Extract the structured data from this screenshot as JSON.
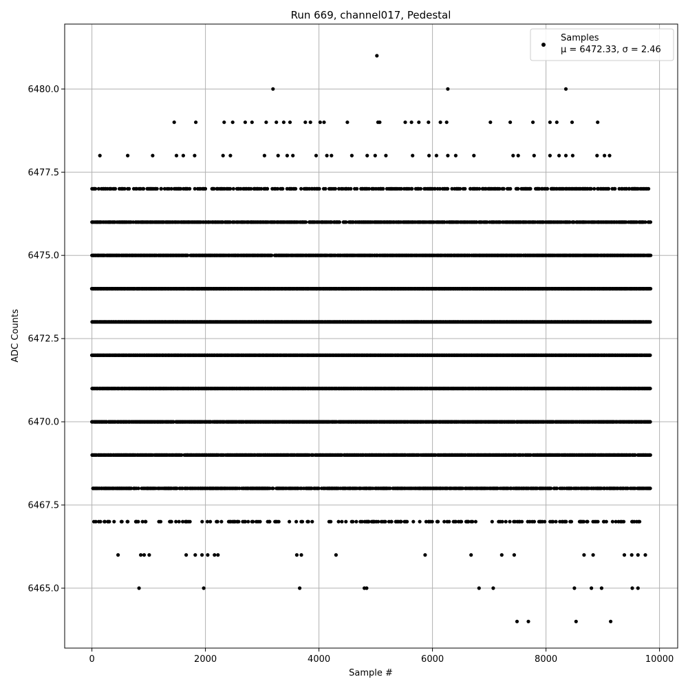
{
  "chart_data": {
    "type": "scatter",
    "title": "Run 669, channel017, Pedestal",
    "xlabel": "Sample #",
    "ylabel": "ADC Counts",
    "xlim": [
      -480,
      10320
    ],
    "ylim": [
      6463.2,
      6481.95
    ],
    "xticks": [
      0,
      2000,
      4000,
      6000,
      8000,
      10000
    ],
    "xtick_labels": [
      "0",
      "2000",
      "4000",
      "6000",
      "8000",
      "10000"
    ],
    "yticks": [
      6465.0,
      6467.5,
      6470.0,
      6472.5,
      6475.0,
      6477.5,
      6480.0
    ],
    "ytick_labels": [
      "6465.0",
      "6467.5",
      "6470.0",
      "6472.5",
      "6475.0",
      "6477.5",
      "6480.0"
    ],
    "grid": true,
    "legend": {
      "placement": "upper-right",
      "entries": [
        "Samples",
        "μ = 6472.33, σ = 2.46"
      ]
    },
    "marker_color": "#000000",
    "series": [
      {
        "name": "Samples",
        "n_samples": 9850,
        "mean": 6472.33,
        "sigma": 2.46,
        "dense_levels": {
          "y": [
            6467,
            6468,
            6469,
            6470,
            6471,
            6472,
            6473,
            6474,
            6475,
            6476,
            6477
          ],
          "x_range": [
            0,
            9850
          ],
          "approx_fill": [
            0.22,
            0.7,
            0.85,
            0.95,
            1.0,
            1.0,
            1.0,
            1.0,
            0.95,
            0.75,
            0.45
          ]
        },
        "sparse_points": {
          "x": [
            140,
            630,
            1070,
            1490,
            1610,
            1810,
            2310,
            2440,
            3040,
            3280,
            3440,
            3540,
            3950,
            4140,
            4220,
            4580,
            4850,
            4990,
            5180,
            5650,
            5940,
            6070,
            6270,
            6410,
            6730,
            7420,
            7510,
            7790,
            8070,
            8230,
            8350,
            8470,
            8900,
            9030,
            9120,
            1450,
            1830,
            2330,
            2480,
            2700,
            2820,
            3070,
            3250,
            3380,
            3490,
            3760,
            3850,
            4020,
            4090,
            4500,
            5040,
            5070,
            5520,
            5630,
            5760,
            5930,
            6140,
            6250,
            7020,
            7370,
            7770,
            8070,
            8190,
            8460,
            8910,
            3190,
            6270,
            8350,
            5020,
            460,
            860,
            920,
            1010,
            1660,
            1820,
            1940,
            2040,
            2160,
            2220,
            3610,
            3690,
            4300,
            5870,
            6680,
            7220,
            7440,
            8670,
            8830,
            9380,
            9510,
            9620,
            9750,
            830,
            1970,
            3660,
            4800,
            4840,
            6820,
            7070,
            8500,
            8800,
            8980,
            9520,
            9620,
            7490,
            7690,
            8530,
            9140
          ],
          "y": [
            6478,
            6478,
            6478,
            6478,
            6478,
            6478,
            6478,
            6478,
            6478,
            6478,
            6478,
            6478,
            6478,
            6478,
            6478,
            6478,
            6478,
            6478,
            6478,
            6478,
            6478,
            6478,
            6478,
            6478,
            6478,
            6478,
            6478,
            6478,
            6478,
            6478,
            6478,
            6478,
            6478,
            6478,
            6478,
            6479,
            6479,
            6479,
            6479,
            6479,
            6479,
            6479,
            6479,
            6479,
            6479,
            6479,
            6479,
            6479,
            6479,
            6479,
            6479,
            6479,
            6479,
            6479,
            6479,
            6479,
            6479,
            6479,
            6479,
            6479,
            6479,
            6479,
            6479,
            6479,
            6479,
            6480,
            6480,
            6480,
            6481,
            6466,
            6466,
            6466,
            6466,
            6466,
            6466,
            6466,
            6466,
            6466,
            6466,
            6466,
            6466,
            6466,
            6466,
            6466,
            6466,
            6466,
            6466,
            6466,
            6466,
            6466,
            6466,
            6466,
            6465,
            6465,
            6465,
            6465,
            6465,
            6465,
            6465,
            6465,
            6465,
            6465,
            6465,
            6465,
            6464,
            6464,
            6464,
            6464
          ]
        }
      }
    ]
  }
}
